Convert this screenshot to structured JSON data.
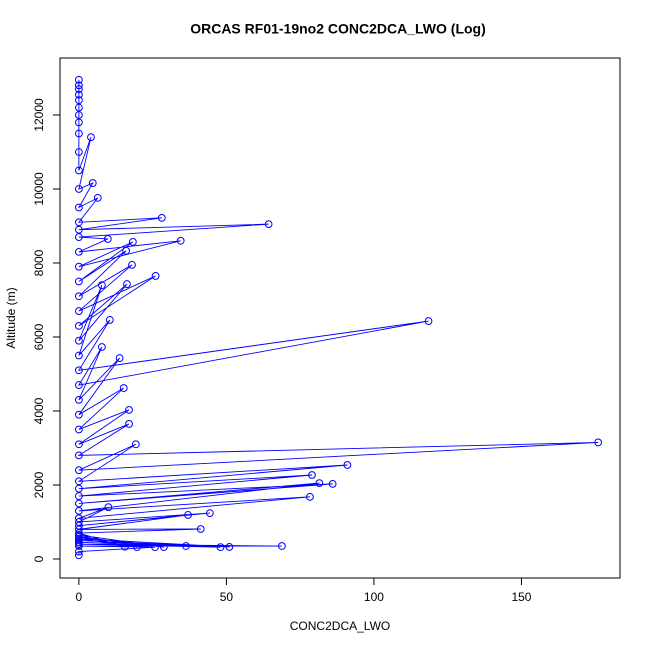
{
  "chart_data": {
    "type": "line",
    "title": "ORCAS RF01-19no2 CONC2DCA_LWO (Log)",
    "x_label": "CONC2DCA_LWO",
    "y_label": "Altitude (m)",
    "x": [
      0,
      0,
      25.8,
      0,
      68.8,
      0,
      48,
      0,
      36.3,
      0,
      51,
      0,
      19.7,
      0,
      28.8,
      0,
      15.6,
      0,
      41.3,
      0,
      37,
      0,
      44.4,
      0,
      10,
      0,
      78.3,
      0,
      81.5,
      0,
      86,
      0,
      79,
      0,
      91,
      0,
      19.3,
      0,
      176,
      0,
      17,
      0,
      17,
      0,
      15.2,
      0,
      13.8,
      0,
      7.8,
      0,
      118.5,
      0,
      10.5,
      0,
      7.8,
      0,
      16.3,
      0,
      26,
      0,
      18,
      0,
      16,
      0,
      18.3,
      0,
      34.5,
      0,
      9.8,
      0,
      64.3,
      0,
      28.1,
      0,
      6.4,
      0,
      4.7,
      0,
      4.1,
      0,
      0,
      0,
      0,
      0,
      0,
      0,
      0,
      0,
      0,
      0
    ],
    "series": [
      {
        "color": "#0000ff",
        "values": [
          100,
          200,
          320,
          350,
          350,
          400,
          320,
          450,
          350,
          500,
          325,
          550,
          320,
          600,
          320,
          650,
          330,
          700,
          810,
          800,
          1190,
          900,
          1240,
          1000,
          1400,
          1100,
          1680,
          1300,
          2050,
          1500,
          2030,
          1700,
          2270,
          1900,
          2540,
          2100,
          3100,
          2400,
          3150,
          2800,
          3650,
          3100,
          4030,
          3500,
          4620,
          3900,
          5430,
          4300,
          5730,
          4700,
          6430,
          5100,
          6460,
          5500,
          7400,
          5900,
          7430,
          6300,
          7650,
          6700,
          7950,
          7100,
          8330,
          7500,
          8570,
          7900,
          8600,
          8300,
          8650,
          8700,
          9050,
          8900,
          9220,
          9100,
          9760,
          9500,
          10160,
          10000,
          11400,
          10500,
          11000,
          11500,
          11800,
          12000,
          12200,
          12400,
          12550,
          12700,
          12800,
          12950
        ]
      }
    ],
    "xlim": [
      -6.4,
      183.4
    ],
    "ylim": [
      -514,
      13540
    ],
    "xticks": [
      0,
      50,
      100,
      150
    ],
    "yticks": [
      0,
      2000,
      4000,
      6000,
      8000,
      10000,
      12000
    ]
  }
}
